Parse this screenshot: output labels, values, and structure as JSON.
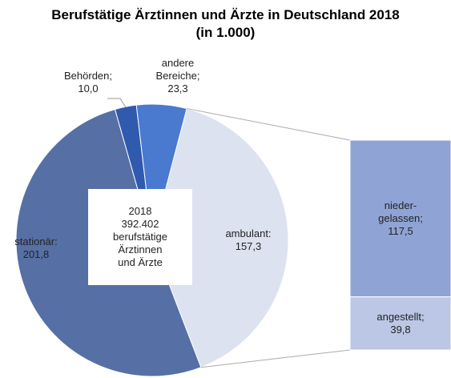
{
  "chart_data": {
    "type": "pie-of-bar",
    "title": "Berufstätige Ärztinnen und Ärzte in Deutschland 2018 (in 1.000)",
    "center_label": "2018\n392.402\nberufstätige\nÄrztinnen\nund Ärzte",
    "categories": [
      "ambulant:",
      "stationär:",
      "Behörden;",
      "andere Bereiche;"
    ],
    "values": [
      157.3,
      201.8,
      10.0,
      23.3
    ],
    "value_labels": [
      "157,3",
      "201,8",
      "10,0",
      "23,3"
    ],
    "colors": [
      "#dce2f0",
      "#5670a6",
      "#2f5aae",
      "#4a79d0"
    ],
    "bar": {
      "categories": [
        "nieder-gelassen;",
        "angestellt;"
      ],
      "values": [
        117.5,
        39.8
      ],
      "value_labels": [
        "117,5",
        "39,8"
      ],
      "colors": [
        "#8fa4d5",
        "#bcc7e5"
      ]
    }
  }
}
